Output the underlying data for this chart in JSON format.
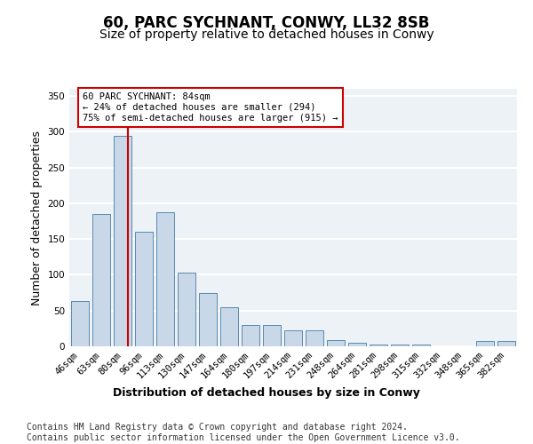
{
  "title": "60, PARC SYCHNANT, CONWY, LL32 8SB",
  "subtitle": "Size of property relative to detached houses in Conwy",
  "xlabel": "Distribution of detached houses by size in Conwy",
  "ylabel": "Number of detached properties",
  "bar_labels": [
    "46sqm",
    "63sqm",
    "80sqm",
    "96sqm",
    "113sqm",
    "130sqm",
    "147sqm",
    "164sqm",
    "180sqm",
    "197sqm",
    "214sqm",
    "231sqm",
    "248sqm",
    "264sqm",
    "281sqm",
    "298sqm",
    "315sqm",
    "332sqm",
    "348sqm",
    "365sqm",
    "382sqm"
  ],
  "bar_values": [
    63,
    185,
    294,
    160,
    188,
    103,
    75,
    55,
    30,
    30,
    22,
    22,
    9,
    5,
    3,
    2,
    2,
    0,
    0,
    8,
    7
  ],
  "bar_color": "#c8d8e8",
  "bar_edge_color": "#5a8ab0",
  "background_color": "#edf2f7",
  "grid_color": "#ffffff",
  "red_line_color": "#cc0000",
  "annotation_text": "60 PARC SYCHNANT: 84sqm\n← 24% of detached houses are smaller (294)\n75% of semi-detached houses are larger (915) →",
  "annotation_box_edgecolor": "#cc0000",
  "ylim": [
    0,
    360
  ],
  "yticks": [
    0,
    50,
    100,
    150,
    200,
    250,
    300,
    350
  ],
  "footer_text": "Contains HM Land Registry data © Crown copyright and database right 2024.\nContains public sector information licensed under the Open Government Licence v3.0.",
  "title_fontsize": 12,
  "subtitle_fontsize": 10,
  "axis_label_fontsize": 9,
  "tick_fontsize": 7.5,
  "footer_fontsize": 7
}
